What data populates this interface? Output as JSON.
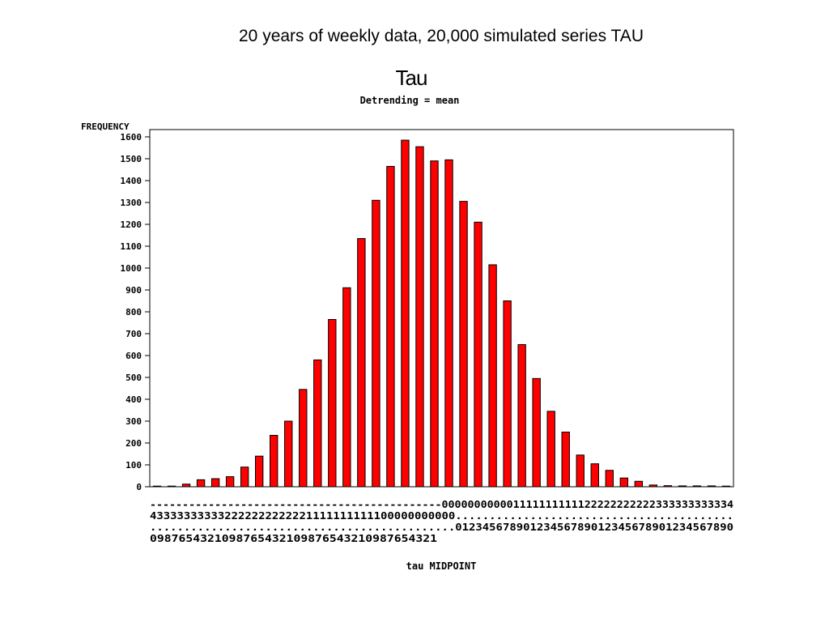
{
  "slide": {
    "title": "20 years of weekly data, 20,000 simulated series TAU"
  },
  "chart_data": {
    "type": "bar",
    "title": "Tau",
    "subtitle": "Detrending = mean",
    "ylabel": "FREQUENCY",
    "xlabel": "tau MIDPOINT",
    "ylim": [
      0,
      1600
    ],
    "yticks": [
      0,
      100,
      200,
      300,
      400,
      500,
      600,
      700,
      800,
      900,
      1000,
      1100,
      1200,
      1300,
      1400,
      1500,
      1600
    ],
    "x_tick_rows": [
      "---------------------------------------------000000000001111111111122222222222333333333334",
      "433333333332222222222221111111111100000000000.........................................",
      ".............................................01234567890123456789012345678901234567890",
      "0987654321098765432109876543210987654321"
    ],
    "categories": [
      "-4.0",
      "-3.9",
      "-3.8",
      "-3.7",
      "-3.6",
      "-3.5",
      "-3.4",
      "-3.3",
      "-3.2",
      "-3.1",
      "-3.0",
      "-2.9",
      "-2.8",
      "-2.7",
      "-2.6",
      "-2.5",
      "-2.4",
      "-2.3",
      "-2.2",
      "-2.1",
      "-2.0",
      "-1.9",
      "-1.8",
      "-1.7",
      "-1.6",
      "-1.5",
      "-1.4",
      "-1.3",
      "-1.2",
      "-1.1",
      "-1.0",
      "-0.9",
      "-0.8",
      "-0.7",
      "-0.6",
      "-0.5",
      "-0.4",
      "-0.3",
      "-0.2",
      "-0.1"
    ],
    "values": [
      3,
      3,
      12,
      32,
      37,
      46,
      90,
      140,
      235,
      300,
      445,
      580,
      765,
      910,
      1135,
      1310,
      1465,
      1585,
      1555,
      1490,
      1495,
      1305,
      1210,
      1015,
      850,
      650,
      495,
      345,
      250,
      145,
      105,
      75,
      40,
      25,
      8,
      5,
      4,
      4,
      4,
      3
    ],
    "bar_color": "#ff0000",
    "grid": false,
    "legend": "none"
  }
}
